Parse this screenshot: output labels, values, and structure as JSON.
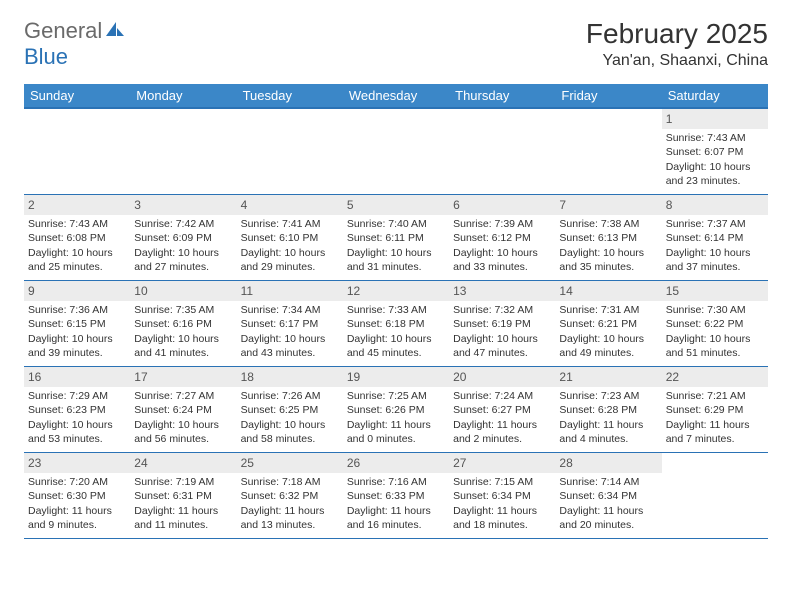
{
  "logo": {
    "textGray": "General",
    "textBlue": "Blue"
  },
  "title": "February 2025",
  "location": "Yan'an, Shaanxi, China",
  "colors": {
    "headerBg": "#3b87c8",
    "headerBorder": "#2a72b5",
    "dayNumBg": "#ececec",
    "textGray": "#6a6a6a",
    "textBlue": "#2a72b5"
  },
  "dayHeaders": [
    "Sunday",
    "Monday",
    "Tuesday",
    "Wednesday",
    "Thursday",
    "Friday",
    "Saturday"
  ],
  "weeks": [
    [
      null,
      null,
      null,
      null,
      null,
      null,
      {
        "n": "1",
        "sr": "7:43 AM",
        "ss": "6:07 PM",
        "dl": "10 hours and 23 minutes."
      }
    ],
    [
      {
        "n": "2",
        "sr": "7:43 AM",
        "ss": "6:08 PM",
        "dl": "10 hours and 25 minutes."
      },
      {
        "n": "3",
        "sr": "7:42 AM",
        "ss": "6:09 PM",
        "dl": "10 hours and 27 minutes."
      },
      {
        "n": "4",
        "sr": "7:41 AM",
        "ss": "6:10 PM",
        "dl": "10 hours and 29 minutes."
      },
      {
        "n": "5",
        "sr": "7:40 AM",
        "ss": "6:11 PM",
        "dl": "10 hours and 31 minutes."
      },
      {
        "n": "6",
        "sr": "7:39 AM",
        "ss": "6:12 PM",
        "dl": "10 hours and 33 minutes."
      },
      {
        "n": "7",
        "sr": "7:38 AM",
        "ss": "6:13 PM",
        "dl": "10 hours and 35 minutes."
      },
      {
        "n": "8",
        "sr": "7:37 AM",
        "ss": "6:14 PM",
        "dl": "10 hours and 37 minutes."
      }
    ],
    [
      {
        "n": "9",
        "sr": "7:36 AM",
        "ss": "6:15 PM",
        "dl": "10 hours and 39 minutes."
      },
      {
        "n": "10",
        "sr": "7:35 AM",
        "ss": "6:16 PM",
        "dl": "10 hours and 41 minutes."
      },
      {
        "n": "11",
        "sr": "7:34 AM",
        "ss": "6:17 PM",
        "dl": "10 hours and 43 minutes."
      },
      {
        "n": "12",
        "sr": "7:33 AM",
        "ss": "6:18 PM",
        "dl": "10 hours and 45 minutes."
      },
      {
        "n": "13",
        "sr": "7:32 AM",
        "ss": "6:19 PM",
        "dl": "10 hours and 47 minutes."
      },
      {
        "n": "14",
        "sr": "7:31 AM",
        "ss": "6:21 PM",
        "dl": "10 hours and 49 minutes."
      },
      {
        "n": "15",
        "sr": "7:30 AM",
        "ss": "6:22 PM",
        "dl": "10 hours and 51 minutes."
      }
    ],
    [
      {
        "n": "16",
        "sr": "7:29 AM",
        "ss": "6:23 PM",
        "dl": "10 hours and 53 minutes."
      },
      {
        "n": "17",
        "sr": "7:27 AM",
        "ss": "6:24 PM",
        "dl": "10 hours and 56 minutes."
      },
      {
        "n": "18",
        "sr": "7:26 AM",
        "ss": "6:25 PM",
        "dl": "10 hours and 58 minutes."
      },
      {
        "n": "19",
        "sr": "7:25 AM",
        "ss": "6:26 PM",
        "dl": "11 hours and 0 minutes."
      },
      {
        "n": "20",
        "sr": "7:24 AM",
        "ss": "6:27 PM",
        "dl": "11 hours and 2 minutes."
      },
      {
        "n": "21",
        "sr": "7:23 AM",
        "ss": "6:28 PM",
        "dl": "11 hours and 4 minutes."
      },
      {
        "n": "22",
        "sr": "7:21 AM",
        "ss": "6:29 PM",
        "dl": "11 hours and 7 minutes."
      }
    ],
    [
      {
        "n": "23",
        "sr": "7:20 AM",
        "ss": "6:30 PM",
        "dl": "11 hours and 9 minutes."
      },
      {
        "n": "24",
        "sr": "7:19 AM",
        "ss": "6:31 PM",
        "dl": "11 hours and 11 minutes."
      },
      {
        "n": "25",
        "sr": "7:18 AM",
        "ss": "6:32 PM",
        "dl": "11 hours and 13 minutes."
      },
      {
        "n": "26",
        "sr": "7:16 AM",
        "ss": "6:33 PM",
        "dl": "11 hours and 16 minutes."
      },
      {
        "n": "27",
        "sr": "7:15 AM",
        "ss": "6:34 PM",
        "dl": "11 hours and 18 minutes."
      },
      {
        "n": "28",
        "sr": "7:14 AM",
        "ss": "6:34 PM",
        "dl": "11 hours and 20 minutes."
      },
      null
    ]
  ],
  "labels": {
    "sunrise": "Sunrise:",
    "sunset": "Sunset:",
    "daylight": "Daylight:"
  }
}
